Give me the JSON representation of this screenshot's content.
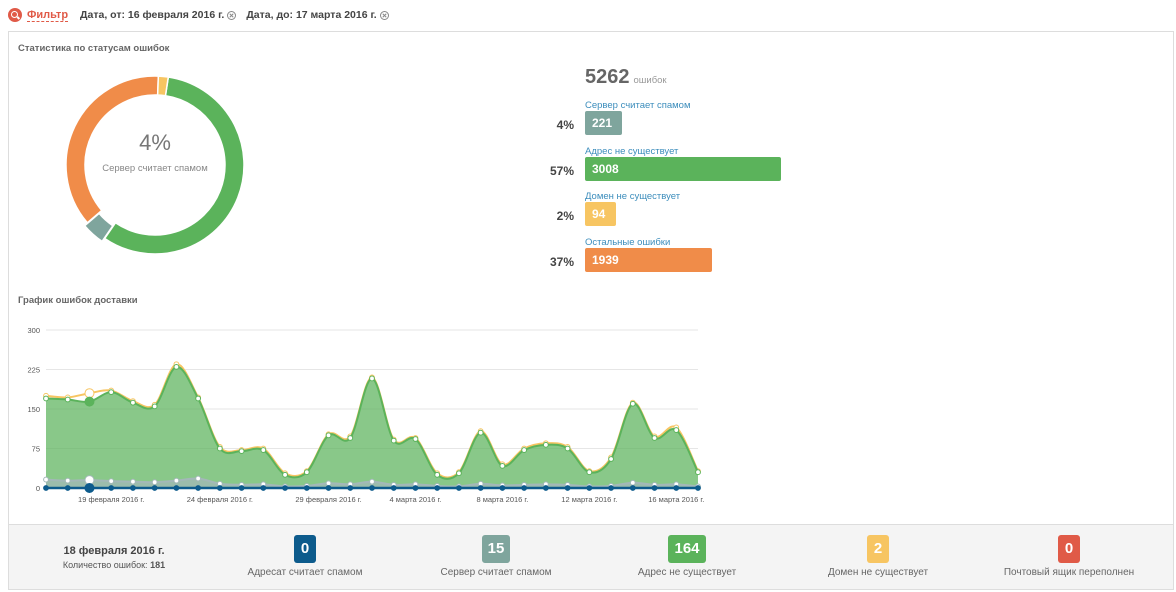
{
  "filter": {
    "label": "Фильтр",
    "chips": [
      "Дата, от: 16 февраля 2016 г.",
      "Дата, до: 17 марта 2016 г."
    ]
  },
  "status_stats": {
    "title": "Статистика по статусам ошибок",
    "center_pct": "4%",
    "center_label": "Сервер считает спамом",
    "total": "5262",
    "total_unit": "ошибок",
    "rows": [
      {
        "label": "Сервер считает спамом",
        "pct": "4%",
        "value": "221",
        "color": "#7fa59d"
      },
      {
        "label": "Адрес не существует",
        "pct": "57%",
        "value": "3008",
        "color": "#5bb35b"
      },
      {
        "label": "Домен не существует",
        "pct": "2%",
        "value": "94",
        "color": "#f7c562"
      },
      {
        "label": "Остальные ошибки",
        "pct": "37%",
        "value": "1939",
        "color": "#f08c49"
      }
    ]
  },
  "chart_data": {
    "type": "area",
    "title": "График ошибок доставки",
    "x_tick_labels": [
      "19 февраля 2016 г.",
      "24 февраля 2016 г.",
      "29 февраля 2016 г.",
      "4 марта 2016 г.",
      "8 марта 2016 г.",
      "12 марта 2016 г.",
      "16 марта 2016 г."
    ],
    "y_ticks": [
      "0",
      "75",
      "150",
      "225",
      "300"
    ],
    "ylim": [
      0,
      300
    ],
    "x": [
      "16.02",
      "17.02",
      "18.02",
      "19.02",
      "20.02",
      "21.02",
      "22.02",
      "23.02",
      "24.02",
      "25.02",
      "26.02",
      "27.02",
      "28.02",
      "29.02",
      "01.03",
      "02.03",
      "03.03",
      "04.03",
      "05.03",
      "06.03",
      "07.03",
      "08.03",
      "09.03",
      "10.03",
      "11.03",
      "12.03",
      "13.03",
      "14.03",
      "15.03",
      "16.03",
      "17.03"
    ],
    "series": [
      {
        "values": [
          175,
          172,
          180,
          185,
          165,
          158,
          235,
          172,
          78,
          72,
          75,
          28,
          32,
          102,
          98,
          210,
          92,
          95,
          28,
          30,
          108,
          45,
          75,
          85,
          78,
          32,
          58,
          162,
          98,
          115,
          32
        ]
      },
      {
        "values": [
          170,
          168,
          164,
          182,
          162,
          155,
          230,
          170,
          75,
          70,
          72,
          25,
          30,
          100,
          95,
          208,
          90,
          93,
          25,
          28,
          105,
          42,
          72,
          82,
          75,
          30,
          55,
          160,
          95,
          110,
          30
        ]
      },
      {
        "values": [
          16,
          14,
          15,
          13,
          12,
          11,
          14,
          18,
          8,
          6,
          7,
          3,
          4,
          9,
          7,
          12,
          6,
          7,
          4,
          3,
          8,
          5,
          6,
          7,
          6,
          3,
          4,
          10,
          6,
          7,
          3
        ]
      },
      {
        "values": [
          0,
          0,
          0,
          0,
          0,
          0,
          0,
          0,
          0,
          0,
          0,
          0,
          0,
          0,
          0,
          0,
          0,
          0,
          0,
          0,
          0,
          0,
          0,
          0,
          0,
          0,
          0,
          0,
          0,
          0,
          0
        ]
      }
    ],
    "colors": [
      "#f7c562",
      "#5bb35b",
      "#a3b8b8",
      "#0d5b8c"
    ]
  },
  "bottom": {
    "date": "18 февраля 2016 г.",
    "count_label": "Количество ошибок:",
    "count_value": "181",
    "badges": [
      {
        "value": "0",
        "label": "Адресат считает спамом",
        "color": "#0d5b8c"
      },
      {
        "value": "15",
        "label": "Сервер считает спамом",
        "color": "#7fa59d"
      },
      {
        "value": "164",
        "label": "Адрес не существует",
        "color": "#5bb35b"
      },
      {
        "value": "2",
        "label": "Домен не существует",
        "color": "#f7c562"
      },
      {
        "value": "0",
        "label": "Почтовый ящик переполнен",
        "color": "#e05a47"
      }
    ]
  }
}
